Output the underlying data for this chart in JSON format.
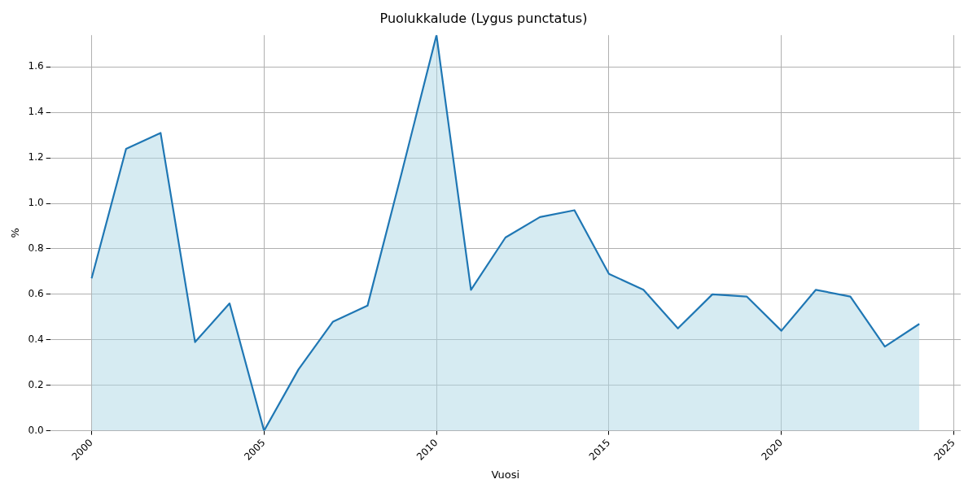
{
  "chart_data": {
    "type": "area",
    "title": "Puolukkalude (Lygus punctatus)",
    "xlabel": "Vuosi",
    "ylabel": "%",
    "x": [
      2000,
      2001,
      2002,
      2003,
      2004,
      2005,
      2006,
      2007,
      2008,
      2009,
      2010,
      2011,
      2012,
      2013,
      2014,
      2015,
      2016,
      2017,
      2018,
      2019,
      2020,
      2021,
      2022,
      2023,
      2024
    ],
    "series": [
      {
        "color": "#1f77b4",
        "values": [
          0.67,
          1.24,
          1.31,
          0.39,
          0.56,
          0,
          0.27,
          0.48,
          0.55,
          1.14,
          1.74,
          0.62,
          0.85,
          0.94,
          0.97,
          0.69,
          0.62,
          0.45,
          0.6,
          0.59,
          0.44,
          0.62,
          0.59,
          0.37,
          0.47
        ]
      }
    ],
    "xlim": [
      1998.8,
      2025.2
    ],
    "xticks": [
      2000,
      2005,
      2010,
      2015,
      2020,
      2025
    ],
    "ylim": [
      0,
      1.74
    ],
    "yticks": [
      {
        "value": 0,
        "label": "0.0"
      },
      0.2,
      0.4,
      0.6,
      0.8,
      {
        "value": 1,
        "label": "1.0"
      },
      1.2,
      1.4,
      1.6
    ],
    "grid": true,
    "legend": false
  }
}
